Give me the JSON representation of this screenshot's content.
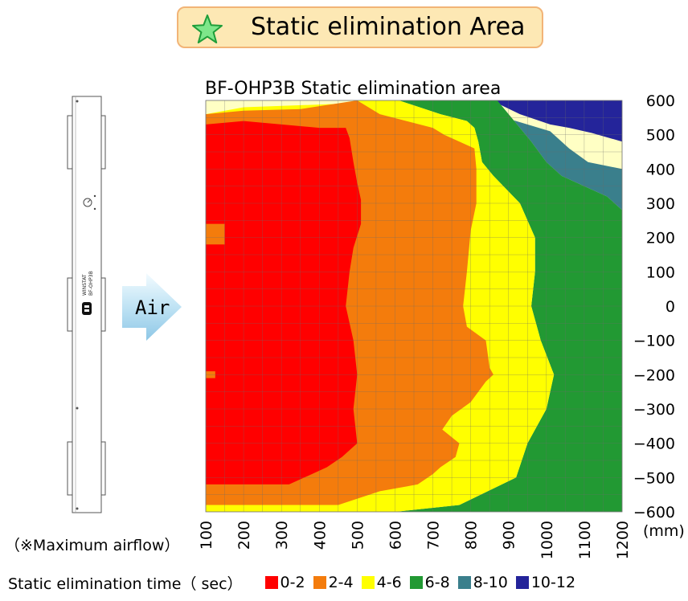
{
  "header": {
    "title": "Static elimination Area",
    "icon": "star-icon"
  },
  "device": {
    "lines": [
      "WINSTAT",
      "BF-OHP3B"
    ]
  },
  "air_label": "Air",
  "note": "（※Maximum airflow）",
  "legend": {
    "title": "Static elimination time（ sec）",
    "items": [
      {
        "label": "0-2",
        "color": "#ff0000"
      },
      {
        "label": "2-4",
        "color": "#f47c0c"
      },
      {
        "label": "4-6",
        "color": "#ffff00"
      },
      {
        "label": "6-8",
        "color": "#229933"
      },
      {
        "label": "8-10",
        "color": "#3a7f8c"
      },
      {
        "label": "10-12",
        "color": "#24249a"
      }
    ]
  },
  "chart_data": {
    "type": "area",
    "title": "BF-OHP3B Static elimination area",
    "xlabel": "(mm)",
    "ylabel": "",
    "xlim": [
      100,
      1200
    ],
    "ylim": [
      -600,
      600
    ],
    "x_ticks": [
      "100",
      "200",
      "300",
      "400",
      "500",
      "600",
      "700",
      "800",
      "900",
      "1000",
      "1100",
      "1200"
    ],
    "y_ticks": [
      "600",
      "500",
      "400",
      "300",
      "200",
      "100",
      "0",
      "−100",
      "−200",
      "−300",
      "−400",
      "−500",
      "−600"
    ],
    "grid": true,
    "background_color": "#ffffc4",
    "zones": [
      {
        "name": "10-12",
        "color": "#24249a",
        "points": [
          [
            855,
            600
          ],
          [
            930,
            560
          ],
          [
            1010,
            530
          ],
          [
            1060,
            520
          ],
          [
            1120,
            505
          ],
          [
            1200,
            480
          ],
          [
            1200,
            600
          ]
        ]
      },
      {
        "name": "8-10",
        "color": "#3a7f8c",
        "points": [
          [
            830,
            600
          ],
          [
            860,
            560
          ],
          [
            920,
            540
          ],
          [
            1010,
            510
          ],
          [
            1060,
            460
          ],
          [
            1110,
            420
          ],
          [
            1200,
            400
          ],
          [
            1200,
            280
          ],
          [
            1160,
            320
          ],
          [
            1100,
            350
          ],
          [
            1040,
            380
          ],
          [
            1000,
            420
          ],
          [
            960,
            480
          ],
          [
            930,
            520
          ],
          [
            900,
            560
          ],
          [
            870,
            600
          ]
        ]
      },
      {
        "name": "6-8",
        "color": "#229933",
        "points": [
          [
            610,
            600
          ],
          [
            720,
            560
          ],
          [
            790,
            540
          ],
          [
            810,
            520
          ],
          [
            820,
            480
          ],
          [
            830,
            420
          ],
          [
            860,
            380
          ],
          [
            930,
            300
          ],
          [
            970,
            200
          ],
          [
            970,
            100
          ],
          [
            960,
            0
          ],
          [
            985,
            -100
          ],
          [
            1020,
            -200
          ],
          [
            1000,
            -300
          ],
          [
            950,
            -400
          ],
          [
            920,
            -500
          ],
          [
            770,
            -580
          ],
          [
            600,
            -600
          ],
          [
            1200,
            -600
          ],
          [
            1200,
            280
          ],
          [
            1160,
            320
          ],
          [
            1100,
            350
          ],
          [
            1040,
            380
          ],
          [
            1000,
            420
          ],
          [
            960,
            480
          ],
          [
            930,
            520
          ],
          [
            900,
            560
          ],
          [
            870,
            600
          ]
        ]
      },
      {
        "name": "4-6",
        "color": "#ffff00",
        "points": [
          [
            100,
            560
          ],
          [
            200,
            580
          ],
          [
            450,
            590
          ],
          [
            500,
            600
          ],
          [
            610,
            600
          ],
          [
            720,
            560
          ],
          [
            790,
            540
          ],
          [
            810,
            520
          ],
          [
            820,
            480
          ],
          [
            830,
            420
          ],
          [
            860,
            380
          ],
          [
            930,
            300
          ],
          [
            970,
            200
          ],
          [
            970,
            100
          ],
          [
            960,
            0
          ],
          [
            985,
            -100
          ],
          [
            1020,
            -200
          ],
          [
            1000,
            -300
          ],
          [
            950,
            -400
          ],
          [
            920,
            -500
          ],
          [
            770,
            -580
          ],
          [
            600,
            -600
          ],
          [
            100,
            -600
          ]
        ]
      },
      {
        "name": "2-4",
        "color": "#f47c0c",
        "points": [
          [
            100,
            560
          ],
          [
            200,
            570
          ],
          [
            350,
            575
          ],
          [
            500,
            600
          ],
          [
            560,
            560
          ],
          [
            630,
            540
          ],
          [
            700,
            520
          ],
          [
            730,
            500
          ],
          [
            770,
            480
          ],
          [
            810,
            460
          ],
          [
            815,
            400
          ],
          [
            815,
            300
          ],
          [
            800,
            220
          ],
          [
            790,
            100
          ],
          [
            780,
            0
          ],
          [
            790,
            -60
          ],
          [
            840,
            -100
          ],
          [
            850,
            -180
          ],
          [
            860,
            -200
          ],
          [
            840,
            -220
          ],
          [
            800,
            -280
          ],
          [
            750,
            -320
          ],
          [
            725,
            -360
          ],
          [
            770,
            -400
          ],
          [
            760,
            -440
          ],
          [
            720,
            -470
          ],
          [
            700,
            -490
          ],
          [
            660,
            -520
          ],
          [
            560,
            -540
          ],
          [
            450,
            -580
          ],
          [
            330,
            -580
          ],
          [
            100,
            -580
          ]
        ]
      },
      {
        "name": "0-2",
        "color": "#ff0000",
        "points": [
          [
            100,
            530
          ],
          [
            200,
            540
          ],
          [
            300,
            530
          ],
          [
            400,
            520
          ],
          [
            470,
            520
          ],
          [
            480,
            490
          ],
          [
            490,
            420
          ],
          [
            500,
            360
          ],
          [
            510,
            310
          ],
          [
            510,
            240
          ],
          [
            490,
            170
          ],
          [
            480,
            100
          ],
          [
            470,
            0
          ],
          [
            490,
            -100
          ],
          [
            500,
            -200
          ],
          [
            490,
            -300
          ],
          [
            500,
            -400
          ],
          [
            460,
            -440
          ],
          [
            420,
            -470
          ],
          [
            380,
            -490
          ],
          [
            320,
            -520
          ],
          [
            100,
            -520
          ]
        ]
      },
      {
        "name": "2-4",
        "color": "#f47c0c",
        "points": [
          [
            100,
            240
          ],
          [
            150,
            240
          ],
          [
            150,
            180
          ],
          [
            100,
            180
          ]
        ]
      },
      {
        "name": "2-4",
        "color": "#f47c0c",
        "points": [
          [
            100,
            -190
          ],
          [
            125,
            -190
          ],
          [
            125,
            -210
          ],
          [
            100,
            -210
          ]
        ]
      }
    ]
  }
}
